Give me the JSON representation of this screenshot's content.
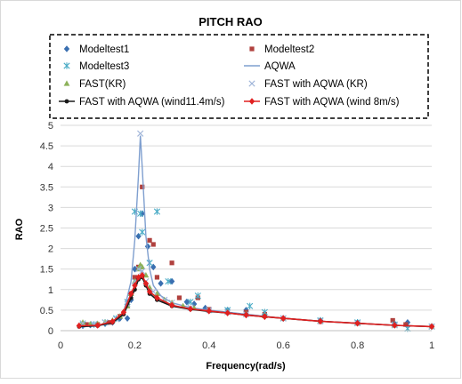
{
  "chart_data": {
    "type": "scatter",
    "title": "PITCH RAO",
    "xlabel": "Frequency(rad/s)",
    "ylabel": "RAO",
    "xlim": [
      0,
      1
    ],
    "ylim": [
      0,
      5
    ],
    "x_ticks": [
      "0",
      "0.2",
      "0.4",
      "0.6",
      "0.8",
      "1"
    ],
    "y_ticks": [
      "0",
      "0.5",
      "1",
      "1.5",
      "2",
      "2.5",
      "3",
      "3.5",
      "4",
      "4.5",
      "5"
    ],
    "grid": "horizontal",
    "legend_position": "top",
    "series": [
      {
        "name": "Modeltest1",
        "marker": "diamond",
        "color": "#3a6fb0",
        "line": false,
        "points": [
          [
            0.06,
            0.12
          ],
          [
            0.08,
            0.14
          ],
          [
            0.1,
            0.14
          ],
          [
            0.12,
            0.17
          ],
          [
            0.14,
            0.2
          ],
          [
            0.16,
            0.3
          ],
          [
            0.18,
            0.3
          ],
          [
            0.19,
            0.75
          ],
          [
            0.2,
            1.5
          ],
          [
            0.21,
            2.3
          ],
          [
            0.22,
            2.85
          ],
          [
            0.235,
            2.05
          ],
          [
            0.25,
            1.55
          ],
          [
            0.27,
            1.15
          ],
          [
            0.3,
            1.2
          ],
          [
            0.34,
            0.7
          ],
          [
            0.36,
            0.65
          ],
          [
            0.39,
            0.55
          ],
          [
            0.45,
            0.5
          ],
          [
            0.5,
            0.5
          ],
          [
            0.6,
            0.3
          ],
          [
            0.7,
            0.25
          ],
          [
            0.8,
            0.2
          ],
          [
            0.9,
            0.17
          ],
          [
            0.935,
            0.2
          ],
          [
            1.0,
            0.1
          ]
        ]
      },
      {
        "name": "Modeltest2",
        "marker": "square",
        "color": "#b0413e",
        "line": false,
        "points": [
          [
            0.07,
            0.15
          ],
          [
            0.1,
            0.15
          ],
          [
            0.13,
            0.2
          ],
          [
            0.16,
            0.35
          ],
          [
            0.18,
            0.6
          ],
          [
            0.19,
            0.9
          ],
          [
            0.2,
            1.3
          ],
          [
            0.21,
            1.55
          ],
          [
            0.22,
            3.5
          ],
          [
            0.24,
            2.2
          ],
          [
            0.25,
            2.1
          ],
          [
            0.26,
            1.3
          ],
          [
            0.3,
            1.65
          ],
          [
            0.32,
            0.8
          ],
          [
            0.37,
            0.8
          ],
          [
            0.4,
            0.52
          ],
          [
            0.5,
            0.45
          ],
          [
            0.55,
            0.4
          ],
          [
            0.6,
            0.3
          ],
          [
            0.7,
            0.22
          ],
          [
            0.8,
            0.18
          ],
          [
            0.895,
            0.25
          ],
          [
            0.93,
            0.15
          ],
          [
            1.0,
            0.1
          ]
        ]
      },
      {
        "name": "Modeltest3",
        "marker": "asterisk",
        "color": "#4bacc6",
        "line": false,
        "points": [
          [
            0.06,
            0.15
          ],
          [
            0.09,
            0.15
          ],
          [
            0.12,
            0.2
          ],
          [
            0.15,
            0.3
          ],
          [
            0.18,
            0.7
          ],
          [
            0.2,
            2.9
          ],
          [
            0.215,
            2.85
          ],
          [
            0.22,
            2.4
          ],
          [
            0.24,
            1.65
          ],
          [
            0.26,
            2.9
          ],
          [
            0.29,
            1.2
          ],
          [
            0.35,
            0.7
          ],
          [
            0.37,
            0.85
          ],
          [
            0.45,
            0.5
          ],
          [
            0.51,
            0.6
          ],
          [
            0.55,
            0.45
          ],
          [
            0.6,
            0.3
          ],
          [
            0.7,
            0.25
          ],
          [
            0.8,
            0.2
          ],
          [
            0.9,
            0.15
          ],
          [
            0.935,
            0.05
          ],
          [
            1.0,
            0.1
          ]
        ]
      },
      {
        "name": "AQWA",
        "marker": "none",
        "color": "#7f9fcf",
        "line": true,
        "points": [
          [
            0.05,
            0.1
          ],
          [
            0.1,
            0.12
          ],
          [
            0.14,
            0.2
          ],
          [
            0.17,
            0.45
          ],
          [
            0.19,
            1.2
          ],
          [
            0.2,
            2.2
          ],
          [
            0.21,
            3.8
          ],
          [
            0.215,
            4.75
          ],
          [
            0.22,
            4.0
          ],
          [
            0.23,
            2.3
          ],
          [
            0.24,
            1.5
          ],
          [
            0.25,
            1.1
          ],
          [
            0.27,
            0.85
          ],
          [
            0.3,
            0.68
          ],
          [
            0.35,
            0.56
          ],
          [
            0.4,
            0.5
          ],
          [
            0.45,
            0.45
          ],
          [
            0.5,
            0.4
          ],
          [
            0.55,
            0.35
          ],
          [
            0.6,
            0.3
          ],
          [
            0.7,
            0.23
          ],
          [
            0.8,
            0.18
          ],
          [
            0.9,
            0.13
          ],
          [
            1.0,
            0.1
          ]
        ]
      },
      {
        "name": "FAST(KR)",
        "marker": "triangle",
        "color": "#8db25a",
        "line": false,
        "points": [
          [
            0.06,
            0.2
          ],
          [
            0.08,
            0.16
          ],
          [
            0.1,
            0.17
          ],
          [
            0.12,
            0.2
          ],
          [
            0.14,
            0.25
          ],
          [
            0.16,
            0.35
          ],
          [
            0.18,
            0.6
          ],
          [
            0.19,
            0.9
          ],
          [
            0.2,
            1.2
          ],
          [
            0.21,
            1.5
          ],
          [
            0.215,
            1.6
          ],
          [
            0.22,
            1.55
          ],
          [
            0.23,
            1.35
          ],
          [
            0.24,
            1.05
          ],
          [
            0.26,
            0.9
          ],
          [
            0.28,
            0.75
          ],
          [
            0.3,
            0.68
          ],
          [
            0.33,
            0.6
          ],
          [
            0.36,
            0.55
          ],
          [
            0.4,
            0.5
          ],
          [
            0.45,
            0.45
          ],
          [
            0.5,
            0.4
          ],
          [
            0.55,
            0.36
          ],
          [
            0.6,
            0.3
          ],
          [
            0.7,
            0.24
          ],
          [
            0.8,
            0.18
          ],
          [
            0.9,
            0.13
          ],
          [
            1.0,
            0.1
          ]
        ]
      },
      {
        "name": "FAST with AQWA (KR)",
        "marker": "x",
        "color": "#9fb4d8",
        "line": false,
        "points": [
          [
            0.06,
            0.18
          ],
          [
            0.09,
            0.16
          ],
          [
            0.12,
            0.2
          ],
          [
            0.15,
            0.28
          ],
          [
            0.18,
            0.65
          ],
          [
            0.2,
            1.2
          ],
          [
            0.21,
            1.5
          ],
          [
            0.215,
            4.8
          ],
          [
            0.22,
            1.45
          ],
          [
            0.23,
            1.2
          ],
          [
            0.25,
            0.95
          ],
          [
            0.28,
            0.75
          ],
          [
            0.3,
            0.68
          ],
          [
            0.35,
            0.56
          ],
          [
            0.4,
            0.5
          ],
          [
            0.45,
            0.45
          ],
          [
            0.5,
            0.4
          ],
          [
            0.6,
            0.3
          ],
          [
            0.7,
            0.23
          ],
          [
            0.8,
            0.18
          ],
          [
            0.9,
            0.13
          ],
          [
            1.0,
            0.1
          ]
        ]
      },
      {
        "name": "FAST with AQWA (wind11.4m/s)",
        "marker": "circle",
        "color": "#1a1a1a",
        "line": true,
        "points": [
          [
            0.05,
            0.1
          ],
          [
            0.1,
            0.12
          ],
          [
            0.14,
            0.2
          ],
          [
            0.17,
            0.4
          ],
          [
            0.19,
            0.8
          ],
          [
            0.2,
            1.0
          ],
          [
            0.21,
            1.25
          ],
          [
            0.22,
            1.3
          ],
          [
            0.23,
            1.1
          ],
          [
            0.24,
            0.9
          ],
          [
            0.26,
            0.75
          ],
          [
            0.3,
            0.6
          ],
          [
            0.35,
            0.52
          ],
          [
            0.4,
            0.47
          ],
          [
            0.45,
            0.43
          ],
          [
            0.5,
            0.38
          ],
          [
            0.55,
            0.34
          ],
          [
            0.6,
            0.3
          ],
          [
            0.7,
            0.23
          ],
          [
            0.8,
            0.18
          ],
          [
            0.9,
            0.13
          ],
          [
            1.0,
            0.1
          ]
        ]
      },
      {
        "name": "FAST with AQWA (wind 8m/s)",
        "marker": "diamond",
        "color": "#e02020",
        "line": true,
        "points": [
          [
            0.05,
            0.12
          ],
          [
            0.1,
            0.13
          ],
          [
            0.14,
            0.22
          ],
          [
            0.17,
            0.45
          ],
          [
            0.19,
            0.9
          ],
          [
            0.2,
            1.1
          ],
          [
            0.21,
            1.3
          ],
          [
            0.22,
            1.35
          ],
          [
            0.23,
            1.15
          ],
          [
            0.24,
            0.95
          ],
          [
            0.26,
            0.8
          ],
          [
            0.3,
            0.62
          ],
          [
            0.35,
            0.53
          ],
          [
            0.4,
            0.48
          ],
          [
            0.45,
            0.43
          ],
          [
            0.5,
            0.38
          ],
          [
            0.55,
            0.34
          ],
          [
            0.6,
            0.3
          ],
          [
            0.7,
            0.23
          ],
          [
            0.8,
            0.18
          ],
          [
            0.9,
            0.13
          ],
          [
            1.0,
            0.1
          ]
        ]
      }
    ]
  }
}
